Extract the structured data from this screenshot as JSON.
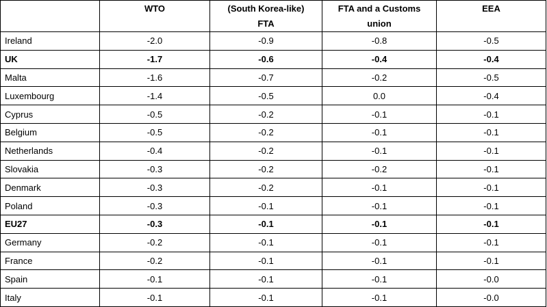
{
  "table": {
    "header": [
      "",
      "WTO",
      "(South Korea-like)\nFTA",
      "FTA and a Customs\nunion",
      "EEA"
    ],
    "rows": [
      {
        "label": "Ireland",
        "bold": false,
        "values": [
          "-2.0",
          "-0.9",
          "-0.8",
          "-0.5"
        ]
      },
      {
        "label": "UK",
        "bold": true,
        "values": [
          "-1.7",
          "-0.6",
          "-0.4",
          "-0.4"
        ]
      },
      {
        "label": "Malta",
        "bold": false,
        "values": [
          "-1.6",
          "-0.7",
          "-0.2",
          "-0.5"
        ]
      },
      {
        "label": "Luxembourg",
        "bold": false,
        "values": [
          "-1.4",
          "-0.5",
          "0.0",
          "-0.4"
        ]
      },
      {
        "label": "Cyprus",
        "bold": false,
        "values": [
          "-0.5",
          "-0.2",
          "-0.1",
          "-0.1"
        ]
      },
      {
        "label": "Belgium",
        "bold": false,
        "values": [
          "-0.5",
          "-0.2",
          "-0.1",
          "-0.1"
        ]
      },
      {
        "label": "Netherlands",
        "bold": false,
        "values": [
          "-0.4",
          "-0.2",
          "-0.1",
          "-0.1"
        ]
      },
      {
        "label": "Slovakia",
        "bold": false,
        "values": [
          "-0.3",
          "-0.2",
          "-0.2",
          "-0.1"
        ]
      },
      {
        "label": "Denmark",
        "bold": false,
        "values": [
          "-0.3",
          "-0.2",
          "-0.1",
          "-0.1"
        ]
      },
      {
        "label": "Poland",
        "bold": false,
        "values": [
          "-0.3",
          "-0.1",
          "-0.1",
          "-0.1"
        ]
      },
      {
        "label": "EU27",
        "bold": true,
        "values": [
          "-0.3",
          "-0.1",
          "-0.1",
          "-0.1"
        ]
      },
      {
        "label": "Germany",
        "bold": false,
        "values": [
          "-0.2",
          "-0.1",
          "-0.1",
          "-0.1"
        ]
      },
      {
        "label": "France",
        "bold": false,
        "values": [
          "-0.2",
          "-0.1",
          "-0.1",
          "-0.1"
        ]
      },
      {
        "label": "Spain",
        "bold": false,
        "values": [
          "-0.1",
          "-0.1",
          "-0.1",
          "-0.0"
        ]
      },
      {
        "label": "Italy",
        "bold": false,
        "values": [
          "-0.1",
          "-0.1",
          "-0.1",
          "-0.0"
        ]
      }
    ]
  }
}
